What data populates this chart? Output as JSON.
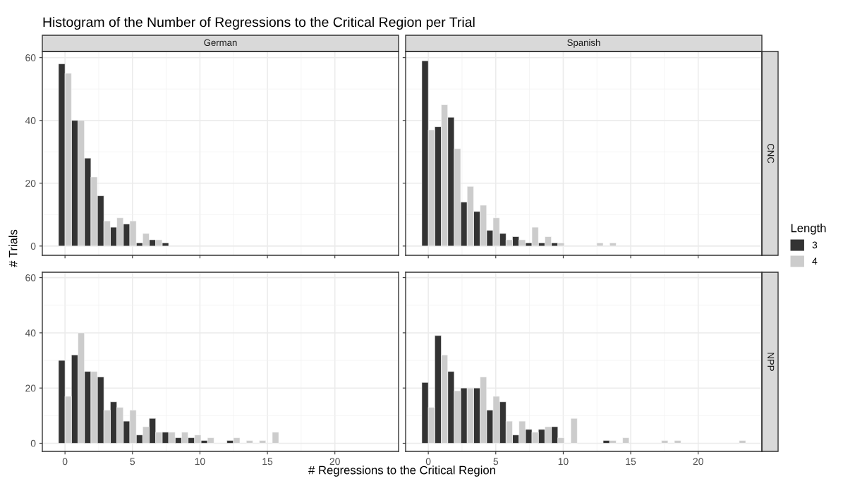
{
  "chart_data": [
    {
      "type": "histogram",
      "title": "German",
      "annotations": [
        "Histogram of the Number of Regressions to the Critical Region per Trial"
      ],
      "ylabel": "# Trials",
      "legend_title": "Length",
      "legend": "right",
      "bins": [
        -0.48,
        0.48,
        1.44,
        2.4,
        3.36,
        4.32,
        5.28,
        6.24,
        7.2,
        8.16,
        9.12,
        10.08,
        11.04,
        12.0,
        12.96,
        13.92,
        14.88,
        15.84,
        16.8,
        17.76,
        18.72,
        19.68,
        20.64,
        21.6,
        22.56,
        23.52
      ],
      "series": [
        {
          "name": "3",
          "color": "#333333",
          "values": [
            58,
            40,
            28,
            16,
            6,
            7,
            1,
            2,
            1,
            0,
            0,
            0,
            0,
            0,
            0,
            0,
            0,
            0,
            0,
            0,
            0,
            0,
            0,
            0,
            0
          ]
        },
        {
          "name": "4",
          "color": "#cccccc",
          "values": [
            55,
            40,
            22,
            8,
            9,
            8,
            4,
            2,
            0,
            0,
            0,
            0,
            0,
            0,
            0,
            0,
            0,
            0,
            0,
            0,
            0,
            0,
            0,
            0,
            0
          ]
        }
      ],
      "xlim": [
        -1.68,
        24.72
      ],
      "ylim": [
        -2.95,
        61.95
      ],
      "xticks": [
        0,
        5,
        10,
        15,
        20
      ],
      "yticks": [
        0,
        20,
        40,
        60
      ],
      "grid": true,
      "tick_labels": "y"
    },
    {
      "type": "histogram",
      "title": "Spanish",
      "y2label": "CNC",
      "bins": [
        -0.48,
        0.48,
        1.44,
        2.4,
        3.36,
        4.32,
        5.28,
        6.24,
        7.2,
        8.16,
        9.12,
        10.08,
        11.04,
        12.0,
        12.96,
        13.92,
        14.88,
        15.84,
        16.8,
        17.76,
        18.72,
        19.68,
        20.64,
        21.6,
        22.56,
        23.52
      ],
      "series": [
        {
          "name": "3",
          "color": "#333333",
          "values": [
            59,
            38,
            41,
            14,
            11,
            5,
            4,
            3,
            1,
            1,
            1,
            0,
            0,
            0,
            0,
            0,
            0,
            0,
            0,
            0,
            0,
            0,
            0,
            0,
            0
          ]
        },
        {
          "name": "4",
          "color": "#cccccc",
          "values": [
            37,
            45,
            31,
            19,
            13,
            9,
            2,
            2,
            6,
            3,
            1,
            0,
            0,
            1,
            1,
            0,
            0,
            0,
            0,
            0,
            0,
            0,
            0,
            0,
            0
          ]
        }
      ],
      "xlim": [
        -1.68,
        24.72
      ],
      "ylim": [
        -2.95,
        61.95
      ],
      "xticks": [
        0,
        5,
        10,
        15,
        20
      ],
      "yticks": [
        0,
        20,
        40,
        60
      ],
      "grid": true,
      "tick_labels": false
    },
    {
      "type": "histogram",
      "xlabel": "# Regressions to the Critical Region",
      "bins": [
        -0.48,
        0.48,
        1.44,
        2.4,
        3.36,
        4.32,
        5.28,
        6.24,
        7.2,
        8.16,
        9.12,
        10.08,
        11.04,
        12.0,
        12.96,
        13.92,
        14.88,
        15.84,
        16.8,
        17.76,
        18.72,
        19.68,
        20.64,
        21.6,
        22.56,
        23.52
      ],
      "series": [
        {
          "name": "3",
          "color": "#333333",
          "values": [
            30,
            32,
            26,
            24,
            15,
            8,
            3,
            9,
            4,
            2,
            2,
            1,
            0,
            1,
            0,
            0,
            0,
            0,
            0,
            0,
            0,
            0,
            0,
            0,
            0
          ]
        },
        {
          "name": "4",
          "color": "#cccccc",
          "values": [
            17,
            40,
            26,
            12,
            13,
            12,
            6,
            4,
            4,
            4,
            3,
            2,
            0,
            2,
            1,
            1,
            4,
            0,
            0,
            0,
            0,
            0,
            0,
            0,
            0
          ]
        }
      ],
      "xlim": [
        -1.68,
        24.72
      ],
      "ylim": [
        -2.95,
        61.95
      ],
      "xticks": [
        0,
        5,
        10,
        15,
        20
      ],
      "yticks": [
        0,
        20,
        40,
        60
      ],
      "grid": true
    },
    {
      "type": "histogram",
      "y2label": "NPP",
      "bins": [
        -0.48,
        0.48,
        1.44,
        2.4,
        3.36,
        4.32,
        5.28,
        6.24,
        7.2,
        8.16,
        9.12,
        10.08,
        11.04,
        12.0,
        12.96,
        13.92,
        14.88,
        15.84,
        16.8,
        17.76,
        18.72,
        19.68,
        20.64,
        21.6,
        22.56,
        23.52
      ],
      "series": [
        {
          "name": "3",
          "color": "#333333",
          "values": [
            22,
            39,
            26,
            20,
            20,
            12,
            15,
            3,
            5,
            5,
            6,
            0,
            0,
            0,
            1,
            0,
            0,
            0,
            0,
            0,
            0,
            0,
            0,
            0,
            0
          ]
        },
        {
          "name": "4",
          "color": "#cccccc",
          "values": [
            13,
            32,
            19,
            20,
            24,
            17,
            8,
            8,
            4,
            6,
            2,
            9,
            0,
            0,
            1,
            2,
            0,
            0,
            1,
            1,
            0,
            0,
            0,
            0,
            1
          ]
        }
      ],
      "xlim": [
        -1.68,
        24.72
      ],
      "ylim": [
        -2.95,
        61.95
      ],
      "xticks": [
        0,
        5,
        10,
        15,
        20
      ],
      "yticks": [
        0,
        20,
        40,
        60
      ],
      "grid": true,
      "tick_labels": "x"
    }
  ]
}
